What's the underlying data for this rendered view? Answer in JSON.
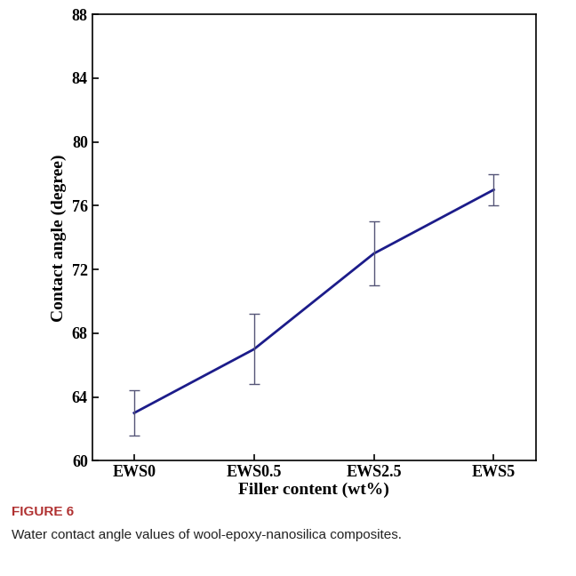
{
  "chart_data": {
    "type": "line",
    "categories": [
      "EWS0",
      "EWS0.5",
      "EWS2.5",
      "EWS5"
    ],
    "values": [
      63,
      67,
      73,
      77
    ],
    "errors": [
      1.4,
      2.2,
      2.0,
      1.0
    ],
    "color": "#1c1c8a",
    "x_label": "Filler content (wt%)",
    "y_label": "Contact angle (degree)",
    "ylim": [
      60,
      88
    ],
    "yticks": [
      60,
      64,
      68,
      72,
      76,
      80,
      84,
      88
    ],
    "grid": false,
    "caption_label": "FIGURE 6",
    "caption": "Water contact angle values of wool-epoxy-nanosilica composites."
  }
}
